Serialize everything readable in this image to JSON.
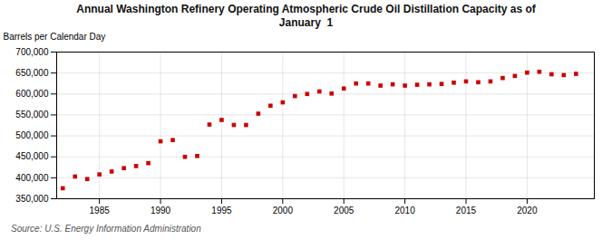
{
  "chart_data": {
    "type": "scatter",
    "title": "Annual Washington Refinery Operating Atmospheric Crude Oil Distillation Capacity as of\nJanuary  1",
    "ylabel": "Barrels per Calendar Day",
    "source": "Source: U.S. Energy Information Administration",
    "x": [
      1982,
      1983,
      1984,
      1985,
      1986,
      1987,
      1988,
      1989,
      1990,
      1991,
      1992,
      1993,
      1994,
      1995,
      1996,
      1997,
      1998,
      1999,
      2000,
      2001,
      2002,
      2003,
      2004,
      2005,
      2006,
      2007,
      2008,
      2009,
      2010,
      2011,
      2012,
      2013,
      2014,
      2015,
      2016,
      2017,
      2018,
      2019,
      2020,
      2021,
      2022,
      2023,
      2024
    ],
    "values": [
      375000,
      403000,
      397000,
      408000,
      415000,
      423000,
      428000,
      435000,
      487000,
      490000,
      450000,
      452000,
      527000,
      538000,
      526000,
      526000,
      553000,
      572000,
      580000,
      595000,
      600000,
      606000,
      601000,
      613000,
      625000,
      625000,
      620000,
      623000,
      620000,
      622000,
      623000,
      624000,
      627000,
      630000,
      628000,
      630000,
      638000,
      643000,
      651000,
      653000,
      647000,
      645000,
      648000
    ],
    "color": "#cc0000",
    "marker": "square",
    "grid": true,
    "xlim": [
      1981.5,
      2025.5
    ],
    "xticks": [
      1985,
      1990,
      1995,
      2000,
      2005,
      2010,
      2015,
      2020
    ],
    "ylim": [
      350000,
      700000
    ],
    "yticks": [
      {
        "value": 350000,
        "label": "350,000"
      },
      {
        "value": 400000,
        "label": "400,000"
      },
      {
        "value": 450000,
        "label": "450,000"
      },
      {
        "value": 500000,
        "label": "500,000"
      },
      {
        "value": 550000,
        "label": "550,000"
      },
      {
        "value": 600000,
        "label": "600,000"
      },
      {
        "value": 650000,
        "label": "650,000"
      },
      {
        "value": 700000,
        "label": "700,000"
      }
    ]
  }
}
